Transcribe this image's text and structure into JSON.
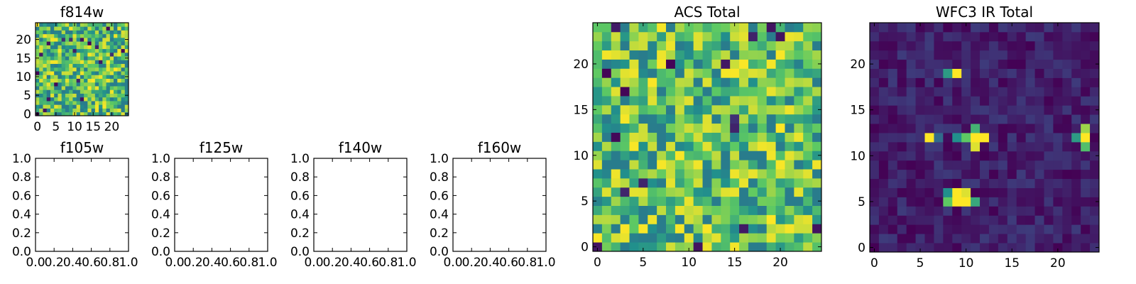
{
  "figure": {
    "background": "#ffffff"
  },
  "colormap": {
    "name": "viridis",
    "stops": [
      "#440154",
      "#3b528b",
      "#21908c",
      "#5dc963",
      "#fde725"
    ]
  },
  "chart_data": [
    {
      "id": "f814w",
      "type": "heatmap",
      "title": "f814w",
      "grid_size": 25,
      "xticks": [
        0,
        5,
        10,
        15,
        20
      ],
      "yticks": [
        0,
        5,
        10,
        15,
        20
      ],
      "xlim": [
        -0.5,
        24.5
      ],
      "ylim": [
        -0.5,
        24.5
      ],
      "texture": "noisy",
      "value_range": [
        0.1,
        1.0
      ],
      "seed": 7
    },
    {
      "id": "f105w",
      "type": "empty",
      "title": "f105w",
      "xticks": [
        "0.0",
        "0.2",
        "0.4",
        "0.6",
        "0.8",
        "1.0"
      ],
      "yticks": [
        "0.0",
        "0.2",
        "0.4",
        "0.6",
        "0.8",
        "1.0"
      ],
      "xlim": [
        0,
        1
      ],
      "ylim": [
        0,
        1
      ]
    },
    {
      "id": "f125w",
      "type": "empty",
      "title": "f125w",
      "xticks": [
        "0.0",
        "0.2",
        "0.4",
        "0.6",
        "0.8",
        "1.0"
      ],
      "yticks": [
        "0.0",
        "0.2",
        "0.4",
        "0.6",
        "0.8",
        "1.0"
      ],
      "xlim": [
        0,
        1
      ],
      "ylim": [
        0,
        1
      ]
    },
    {
      "id": "f140w",
      "type": "empty",
      "title": "f140w",
      "xticks": [
        "0.0",
        "0.2",
        "0.4",
        "0.6",
        "0.8",
        "1.0"
      ],
      "yticks": [
        "0.0",
        "0.2",
        "0.4",
        "0.6",
        "0.8",
        "1.0"
      ],
      "xlim": [
        0,
        1
      ],
      "ylim": [
        0,
        1
      ]
    },
    {
      "id": "f160w",
      "type": "empty",
      "title": "f160w",
      "xticks": [
        "0.0",
        "0.2",
        "0.4",
        "0.6",
        "0.8",
        "1.0"
      ],
      "yticks": [
        "0.0",
        "0.2",
        "0.4",
        "0.6",
        "0.8",
        "1.0"
      ],
      "xlim": [
        0,
        1
      ],
      "ylim": [
        0,
        1
      ]
    },
    {
      "id": "acs-total",
      "type": "heatmap",
      "title": "ACS Total",
      "grid_size": 25,
      "xticks": [
        0,
        5,
        10,
        15,
        20
      ],
      "yticks": [
        0,
        5,
        10,
        15,
        20
      ],
      "xlim": [
        -0.5,
        24.5
      ],
      "ylim": [
        -0.5,
        24.5
      ],
      "texture": "noisy",
      "value_range": [
        0.15,
        1.0
      ],
      "seed": 23
    },
    {
      "id": "wfc3-ir-total",
      "type": "heatmap",
      "title": "WFC3 IR Total",
      "grid_size": 25,
      "xticks": [
        0,
        5,
        10,
        15,
        20
      ],
      "yticks": [
        0,
        5,
        10,
        15,
        20
      ],
      "xlim": [
        -0.5,
        24.5
      ],
      "ylim": [
        -0.5,
        24.5
      ],
      "texture": "sparse",
      "background_range": [
        0.0,
        0.18
      ],
      "seed": 41,
      "bright_cells": [
        {
          "x": 9,
          "y": 19,
          "v": 1.0
        },
        {
          "x": 8,
          "y": 19,
          "v": 0.55
        },
        {
          "x": 6,
          "y": 12,
          "v": 1.0
        },
        {
          "x": 7,
          "y": 12,
          "v": 0.35
        },
        {
          "x": 9,
          "y": 12,
          "v": 0.5
        },
        {
          "x": 10,
          "y": 12,
          "v": 0.75
        },
        {
          "x": 11,
          "y": 12,
          "v": 1.0
        },
        {
          "x": 12,
          "y": 12,
          "v": 1.0
        },
        {
          "x": 11,
          "y": 13,
          "v": 0.65
        },
        {
          "x": 11,
          "y": 11,
          "v": 0.95
        },
        {
          "x": 23,
          "y": 13,
          "v": 0.85
        },
        {
          "x": 22,
          "y": 12,
          "v": 0.55
        },
        {
          "x": 23,
          "y": 12,
          "v": 1.0
        },
        {
          "x": 23,
          "y": 11,
          "v": 0.7
        },
        {
          "x": 8,
          "y": 5,
          "v": 0.75
        },
        {
          "x": 9,
          "y": 5,
          "v": 1.0
        },
        {
          "x": 10,
          "y": 5,
          "v": 1.0
        },
        {
          "x": 11,
          "y": 5,
          "v": 0.6
        },
        {
          "x": 9,
          "y": 6,
          "v": 1.0
        },
        {
          "x": 10,
          "y": 6,
          "v": 0.95
        },
        {
          "x": 8,
          "y": 6,
          "v": 0.5
        }
      ]
    }
  ]
}
